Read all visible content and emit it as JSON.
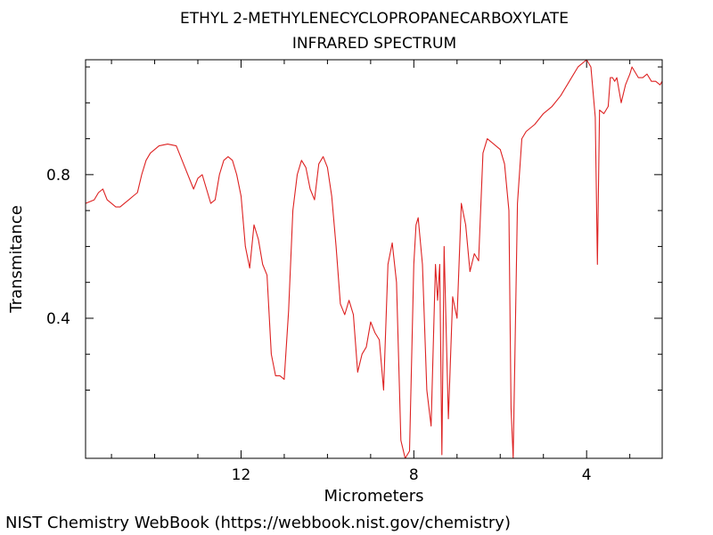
{
  "chart_data": {
    "type": "line",
    "title": "ETHYL 2-METHYLENECYCLOPROPANECARBOXYLATE",
    "subtitle": "INFRARED SPECTRUM",
    "xlabel": "Micrometers",
    "ylabel": "Transmitance",
    "x_axis_reversed": true,
    "xlim": [
      15.6,
      2.25
    ],
    "ylim": [
      0.01,
      1.12
    ],
    "x_major_ticks": [
      12,
      8,
      4
    ],
    "x_minor_ticks": [
      15,
      14,
      13,
      11,
      10,
      9,
      7,
      6,
      5,
      3
    ],
    "y_major_ticks": [
      0.4,
      0.8
    ],
    "y_minor_ticks": [
      0.2,
      0.3,
      0.5,
      0.6,
      0.7,
      0.9,
      1.0,
      1.1
    ],
    "x_tick_labels": [
      "12",
      "8",
      "4"
    ],
    "y_tick_labels": [
      "0.4",
      "0.8"
    ],
    "grid": false,
    "line_color": "#dd2222",
    "series": [
      {
        "x": [
          15.6,
          15.4,
          15.3,
          15.2,
          15.1,
          15.0,
          14.9,
          14.8,
          14.7,
          14.6,
          14.5,
          14.4,
          14.3,
          14.2,
          14.1,
          14.0,
          13.9,
          13.7,
          13.5,
          13.3,
          13.1,
          13.0,
          12.9,
          12.8,
          12.7,
          12.6,
          12.5,
          12.4,
          12.3,
          12.2,
          12.1,
          12.0,
          11.9,
          11.8,
          11.7,
          11.6,
          11.5,
          11.4,
          11.3,
          11.2,
          11.1,
          11.0,
          10.9,
          10.8,
          10.7,
          10.6,
          10.5,
          10.4,
          10.3,
          10.2,
          10.1,
          10.0,
          9.9,
          9.8,
          9.7,
          9.6,
          9.5,
          9.4,
          9.3,
          9.2,
          9.1,
          9.0,
          8.9,
          8.8,
          8.7,
          8.6,
          8.5,
          8.4,
          8.3,
          8.2,
          8.1,
          8.0,
          7.95,
          7.9,
          7.8,
          7.7,
          7.6,
          7.5,
          7.45,
          7.4,
          7.35,
          7.3,
          7.2,
          7.1,
          7.0,
          6.9,
          6.8,
          6.7,
          6.6,
          6.5,
          6.4,
          6.3,
          6.2,
          6.0,
          5.9,
          5.8,
          5.75,
          5.7,
          5.6,
          5.5,
          5.4,
          5.2,
          5.0,
          4.8,
          4.6,
          4.4,
          4.2,
          4.0,
          3.9,
          3.8,
          3.75,
          3.7,
          3.6,
          3.5,
          3.45,
          3.4,
          3.35,
          3.3,
          3.2,
          3.1,
          3.0,
          2.95,
          2.9,
          2.8,
          2.7,
          2.6,
          2.5,
          2.4,
          2.3,
          2.25
        ],
        "y": [
          0.72,
          0.73,
          0.75,
          0.76,
          0.73,
          0.72,
          0.71,
          0.71,
          0.72,
          0.73,
          0.74,
          0.75,
          0.8,
          0.84,
          0.86,
          0.87,
          0.88,
          0.885,
          0.88,
          0.82,
          0.76,
          0.79,
          0.8,
          0.76,
          0.72,
          0.73,
          0.8,
          0.84,
          0.85,
          0.84,
          0.8,
          0.74,
          0.6,
          0.54,
          0.66,
          0.62,
          0.55,
          0.52,
          0.3,
          0.24,
          0.24,
          0.23,
          0.42,
          0.7,
          0.8,
          0.84,
          0.82,
          0.76,
          0.73,
          0.83,
          0.85,
          0.82,
          0.74,
          0.6,
          0.44,
          0.41,
          0.45,
          0.41,
          0.25,
          0.3,
          0.32,
          0.39,
          0.36,
          0.34,
          0.2,
          0.55,
          0.61,
          0.5,
          0.06,
          0.01,
          0.03,
          0.55,
          0.66,
          0.68,
          0.55,
          0.2,
          0.1,
          0.55,
          0.45,
          0.55,
          0.02,
          0.6,
          0.12,
          0.46,
          0.4,
          0.72,
          0.66,
          0.53,
          0.58,
          0.56,
          0.86,
          0.9,
          0.89,
          0.87,
          0.83,
          0.7,
          0.15,
          0.0,
          0.72,
          0.9,
          0.92,
          0.94,
          0.97,
          0.99,
          1.02,
          1.06,
          1.1,
          1.12,
          1.1,
          0.96,
          0.55,
          0.98,
          0.97,
          0.99,
          1.07,
          1.07,
          1.06,
          1.07,
          1.0,
          1.05,
          1.08,
          1.1,
          1.09,
          1.07,
          1.07,
          1.08,
          1.06,
          1.06,
          1.05,
          1.06
        ]
      }
    ]
  },
  "footer": "NIST Chemistry WebBook (https://webbook.nist.gov/chemistry)"
}
